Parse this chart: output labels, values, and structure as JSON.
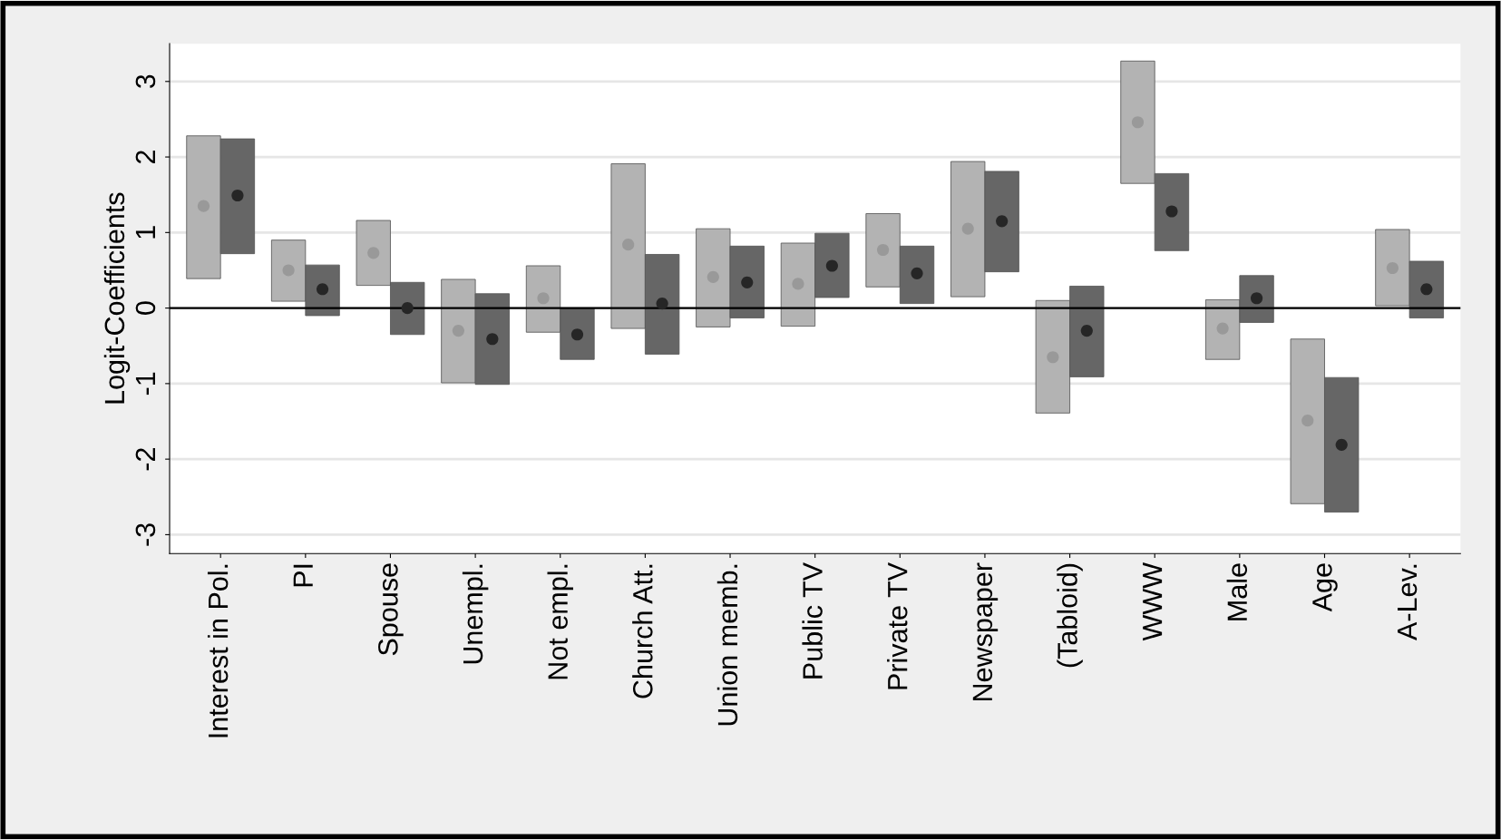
{
  "chart_data": {
    "type": "bar",
    "ylabel": "Logit-Coefficients",
    "categories": [
      "Interest in Pol.",
      "PI",
      "Spouse",
      "Unempl.",
      "Not empl.",
      "Church Att.",
      "Union memb.",
      "Public TV",
      "Private TV",
      "Newspaper",
      "(Tabloid)",
      "WWW",
      "Male",
      "Age",
      "A-Lev."
    ],
    "series": [
      {
        "color": "#b3b3b3",
        "base": [
          0.39,
          0.09,
          0.3,
          -0.99,
          -0.32,
          -0.27,
          -0.25,
          -0.24,
          0.28,
          0.15,
          -1.39,
          1.65,
          -0.68,
          -2.59,
          0.03
        ],
        "values": [
          1.89,
          0.81,
          0.86,
          1.37,
          0.88,
          2.18,
          1.3,
          1.1,
          0.97,
          1.79,
          1.49,
          1.62,
          0.79,
          2.18,
          1.01
        ]
      },
      {
        "color": "#666666",
        "base": [
          0.72,
          -0.1,
          -0.35,
          -1.01,
          -0.68,
          -0.61,
          -0.13,
          0.14,
          0.06,
          0.48,
          -0.91,
          0.76,
          -0.19,
          -2.7,
          -0.13
        ],
        "values": [
          1.52,
          0.67,
          0.69,
          1.2,
          0.68,
          1.32,
          0.95,
          0.85,
          0.76,
          1.33,
          1.2,
          1.02,
          0.62,
          1.78,
          0.75
        ]
      },
      {
        "type": "scatter",
        "color": "#999999",
        "values": [
          1.35,
          0.5,
          0.73,
          -0.3,
          0.13,
          0.84,
          0.41,
          0.32,
          0.77,
          1.05,
          -0.65,
          2.46,
          -0.27,
          -1.49,
          0.53
        ]
      },
      {
        "type": "scatter",
        "color": "#262626",
        "values": [
          1.49,
          0.25,
          0,
          -0.41,
          -0.35,
          0.06,
          0.34,
          0.56,
          0.46,
          1.15,
          -0.3,
          1.28,
          0.13,
          -1.81,
          0.25
        ]
      }
    ],
    "marker": "circle",
    "ylim": [
      -3.25,
      3.5
    ],
    "yticks": [
      -3,
      -2,
      -1,
      0,
      1,
      2,
      3
    ],
    "grid": "y",
    "ref_lines": [
      {
        "axis": "y",
        "value": 0,
        "color": "#000000"
      }
    ]
  }
}
